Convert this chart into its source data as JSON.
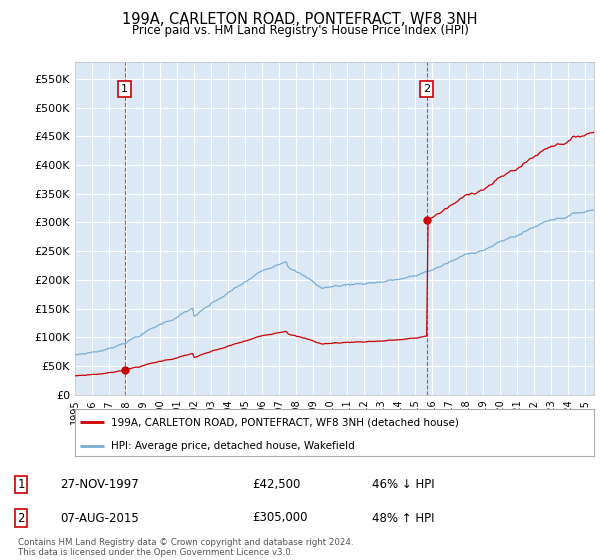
{
  "title": "199A, CARLETON ROAD, PONTEFRACT, WF8 3NH",
  "subtitle": "Price paid vs. HM Land Registry's House Price Index (HPI)",
  "ylabel_ticks": [
    "£0",
    "£50K",
    "£100K",
    "£150K",
    "£200K",
    "£250K",
    "£300K",
    "£350K",
    "£400K",
    "£450K",
    "£500K",
    "£550K"
  ],
  "ytick_values": [
    0,
    50000,
    100000,
    150000,
    200000,
    250000,
    300000,
    350000,
    400000,
    450000,
    500000,
    550000
  ],
  "ylim": [
    0,
    580000
  ],
  "xlim_start": 1995.0,
  "xlim_end": 2025.5,
  "xtick_years": [
    1995,
    1996,
    1997,
    1998,
    1999,
    2000,
    2001,
    2002,
    2003,
    2004,
    2005,
    2006,
    2007,
    2008,
    2009,
    2010,
    2011,
    2012,
    2013,
    2014,
    2015,
    2016,
    2017,
    2018,
    2019,
    2020,
    2021,
    2022,
    2023,
    2024,
    2025
  ],
  "bg_color": "#dce9f5",
  "grid_color": "#ffffff",
  "hpi_line_color": "#7aadd4",
  "price_line_color": "#cc0000",
  "sale1_date": 1997.9167,
  "sale1_price": 42500,
  "sale2_date": 2015.6667,
  "sale2_price": 305000,
  "legend_label1": "199A, CARLETON ROAD, PONTEFRACT, WF8 3NH (detached house)",
  "legend_label2": "HPI: Average price, detached house, Wakefield",
  "footnote": "Contains HM Land Registry data © Crown copyright and database right 2024.\nThis data is licensed under the Open Government Licence v3.0.",
  "table_row1_date": "27-NOV-1997",
  "table_row1_price": "£42,500",
  "table_row1_hpi": "46% ↓ HPI",
  "table_row2_date": "07-AUG-2015",
  "table_row2_price": "£305,000",
  "table_row2_hpi": "48% ↑ HPI"
}
